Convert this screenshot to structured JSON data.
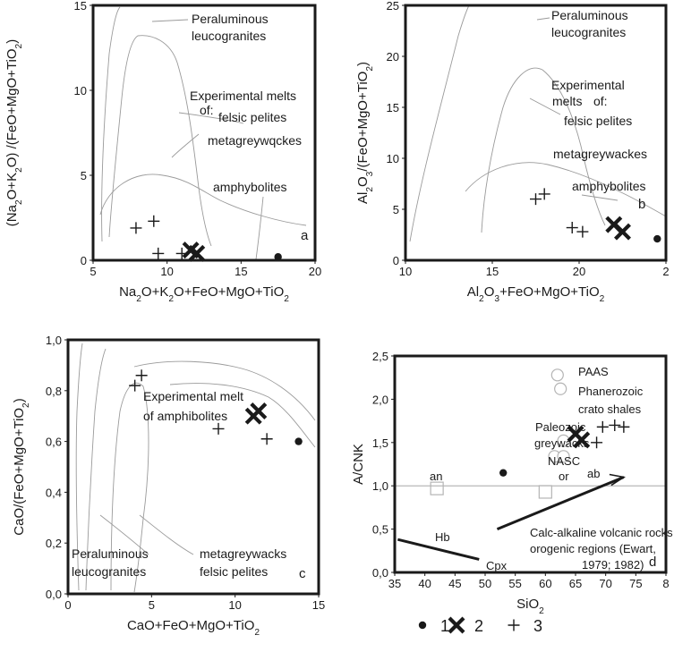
{
  "colors": {
    "frame": "#1a1a1a",
    "outline": "#9a9a9a",
    "marker": "#1a1a1a",
    "hollow": "#b4b4b4"
  },
  "legend": [
    {
      "marker": "dot",
      "label": "1"
    },
    {
      "marker": "x",
      "label": "2"
    },
    {
      "marker": "plus",
      "label": "3"
    }
  ],
  "chart_data": [
    {
      "panel": "a",
      "type": "scatter",
      "xlabel": "Na2O+K2O+FeO+MgO+TiO2",
      "ylabel": "(Na2O+K2O) /(FeO+MgO+TiO2)",
      "xlim": [
        5,
        20
      ],
      "ylim": [
        0,
        15
      ],
      "xticks": [
        "5",
        "10",
        "15",
        "20"
      ],
      "yticks": [
        "0",
        "5",
        "10",
        "15"
      ],
      "annotations": [
        "Peraluminous",
        "leucogranites",
        "Experimental melts",
        "of:",
        "felsic pelites",
        "metagreywqckes",
        "amphybolites"
      ],
      "series": [
        {
          "marker": "dot",
          "points": [
            [
              17.5,
              0.2
            ]
          ]
        },
        {
          "marker": "x",
          "points": [
            [
              11.6,
              0.6
            ],
            [
              12.0,
              0.4
            ]
          ]
        },
        {
          "marker": "plus",
          "points": [
            [
              7.9,
              1.9
            ],
            [
              9.1,
              2.3
            ],
            [
              9.4,
              0.4
            ],
            [
              11.0,
              0.4
            ]
          ]
        }
      ]
    },
    {
      "panel": "b",
      "type": "scatter",
      "xlabel": "Al2O3+FeO+MgO+TiO2",
      "ylabel": "Al2O3/(FeO+MgO+TiO2)",
      "xlim": [
        10,
        25
      ],
      "ylim": [
        0,
        25
      ],
      "xticks": [
        "10",
        "15",
        "20",
        "2"
      ],
      "yticks": [
        "0",
        "5",
        "10",
        "15",
        "20",
        "25"
      ],
      "annotations": [
        "Peraluminous",
        "leucogranites",
        "Experimental",
        "melts",
        "of:",
        "felsic pelites",
        "metagreywackes",
        "amphybolites"
      ],
      "series": [
        {
          "marker": "dot",
          "points": [
            [
              24.5,
              2.1
            ]
          ]
        },
        {
          "marker": "x",
          "points": [
            [
              22.0,
              3.5
            ],
            [
              22.5,
              2.8
            ]
          ]
        },
        {
          "marker": "plus",
          "points": [
            [
              17.5,
              6.0
            ],
            [
              18.0,
              6.5
            ],
            [
              19.6,
              3.2
            ],
            [
              20.2,
              2.8
            ]
          ]
        }
      ]
    },
    {
      "panel": "c",
      "type": "scatter",
      "xlabel": "CaO+FeO+MgO+TiO2",
      "ylabel": "CaO/(FeO+MgO+TiO2)",
      "xlim": [
        0,
        15
      ],
      "ylim": [
        0,
        1
      ],
      "xticks": [
        "0",
        "5",
        "10",
        "15"
      ],
      "yticks": [
        "0,0",
        "0,2",
        "0,4",
        "0,6",
        "0,8",
        "1,0"
      ],
      "annotations": [
        "Experimental melt",
        "of amphibolites",
        "Peraluminous",
        "leucogranites",
        "metagreywacks",
        "felsic pelites"
      ],
      "series": [
        {
          "marker": "dot",
          "points": [
            [
              13.8,
              0.6
            ]
          ]
        },
        {
          "marker": "x",
          "points": [
            [
              11.1,
              0.7
            ],
            [
              11.4,
              0.72
            ]
          ]
        },
        {
          "marker": "plus",
          "points": [
            [
              4.0,
              0.82
            ],
            [
              4.4,
              0.86
            ],
            [
              9.0,
              0.65
            ],
            [
              11.9,
              0.61
            ]
          ]
        }
      ]
    },
    {
      "panel": "d",
      "type": "scatter",
      "xlabel": "SiO2",
      "ylabel": "A/CNK",
      "xlim": [
        35,
        80
      ],
      "ylim": [
        0,
        2.5
      ],
      "xticks": [
        "35",
        "40",
        "45",
        "50",
        "55",
        "60",
        "65",
        "70",
        "75",
        "8"
      ],
      "yticks": [
        "0,0",
        "0,5",
        "1,0",
        "1,5",
        "2,0",
        "2,5"
      ],
      "annotations": [
        "PAAS",
        "Phanerozoic",
        "crato shales",
        "Paleozoic",
        "greywacks",
        "NASC",
        "an",
        "or",
        "ab",
        "Hb",
        "Cpx",
        "Calc-alkaline volcanic rocks",
        "orogenic regions (Ewart,",
        "1979; 1982)"
      ],
      "series": [
        {
          "marker": "dot",
          "points": [
            [
              53,
              1.15
            ]
          ]
        },
        {
          "marker": "x",
          "points": [
            [
              65,
              1.6
            ],
            [
              66,
              1.53
            ]
          ]
        },
        {
          "marker": "plus",
          "points": [
            [
              68.5,
              1.5
            ],
            [
              69.5,
              1.68
            ],
            [
              71.5,
              1.7
            ],
            [
              73,
              1.68
            ]
          ]
        }
      ]
    }
  ]
}
